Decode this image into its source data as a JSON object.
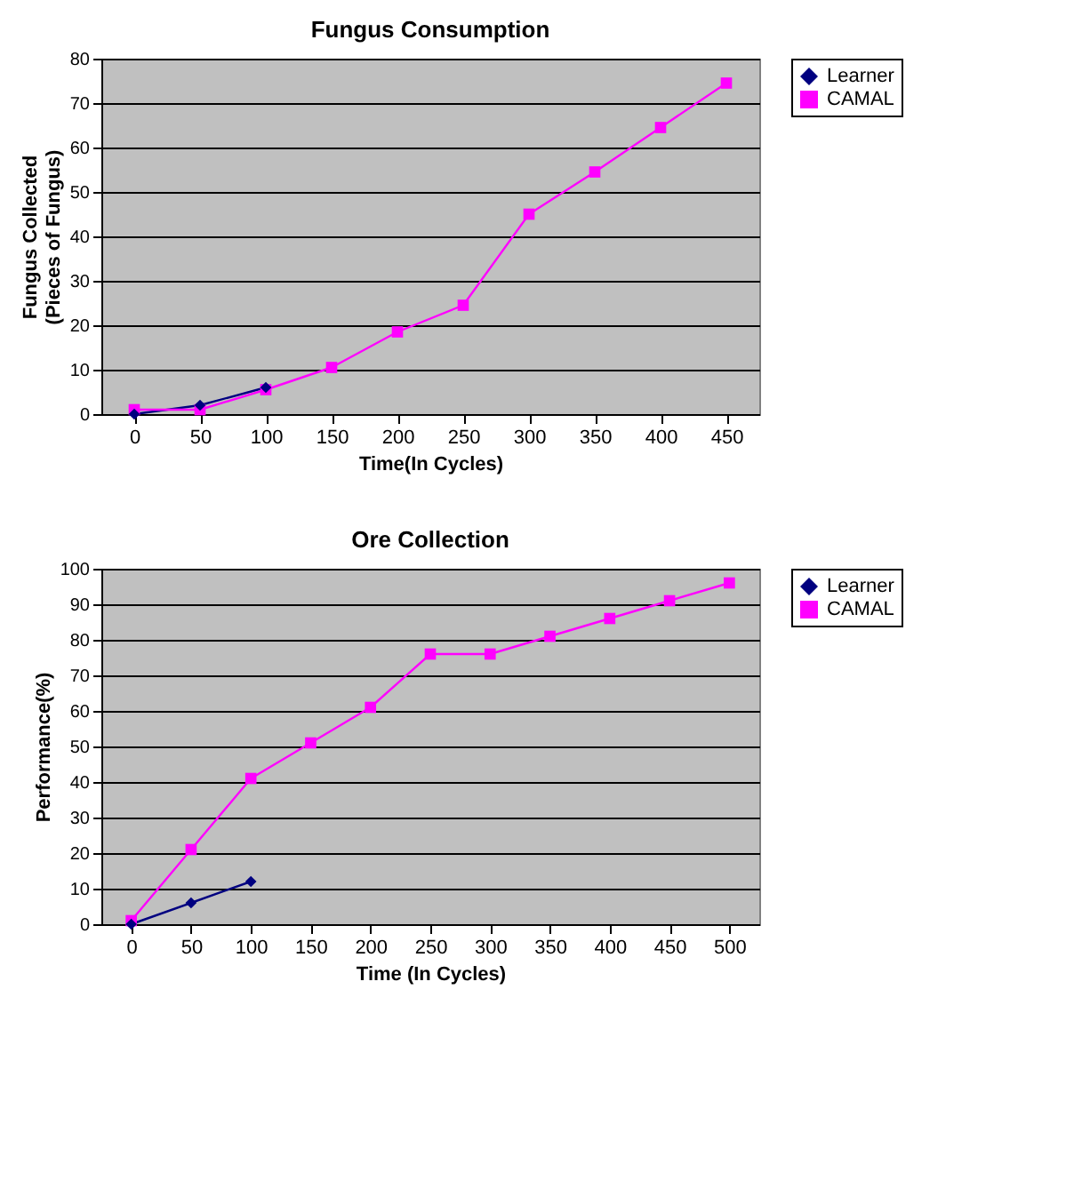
{
  "chart_data": [
    {
      "type": "line",
      "title": "Fungus Consumption",
      "xlabel": "Time(In Cycles)",
      "ylabel": "Fungus Collected\n(Pieces of Fungus)",
      "categories": [
        "0",
        "50",
        "100",
        "150",
        "200",
        "250",
        "300",
        "350",
        "400",
        "450"
      ],
      "ylim": [
        0,
        80
      ],
      "yticks": [
        0,
        10,
        20,
        30,
        40,
        50,
        60,
        70,
        80
      ],
      "grid": "y",
      "legend": "right",
      "series": [
        {
          "name": "Learner",
          "color": "#000080",
          "marker": "diamond",
          "values": [
            0,
            2,
            6,
            null,
            null,
            null,
            null,
            null,
            null,
            null
          ]
        },
        {
          "name": "CAMAL",
          "color": "#ff00ff",
          "marker": "square",
          "values": [
            1,
            1,
            5.5,
            10.5,
            18.5,
            24.5,
            45,
            54.5,
            64.5,
            74.5
          ]
        }
      ]
    },
    {
      "type": "line",
      "title": "Ore Collection",
      "xlabel": "Time (In Cycles)",
      "ylabel": "Performance(%)",
      "categories": [
        "0",
        "50",
        "100",
        "150",
        "200",
        "250",
        "300",
        "350",
        "400",
        "450",
        "500"
      ],
      "ylim": [
        0,
        100
      ],
      "yticks": [
        0,
        10,
        20,
        30,
        40,
        50,
        60,
        70,
        80,
        90,
        100
      ],
      "grid": "y",
      "legend": "right",
      "series": [
        {
          "name": "Learner",
          "color": "#000080",
          "marker": "diamond",
          "values": [
            0,
            6,
            12,
            null,
            null,
            null,
            null,
            null,
            null,
            null,
            null
          ]
        },
        {
          "name": "CAMAL",
          "color": "#ff00ff",
          "marker": "square",
          "values": [
            1,
            21,
            41,
            51,
            61,
            76,
            76,
            81,
            86,
            91,
            96
          ]
        }
      ]
    }
  ]
}
